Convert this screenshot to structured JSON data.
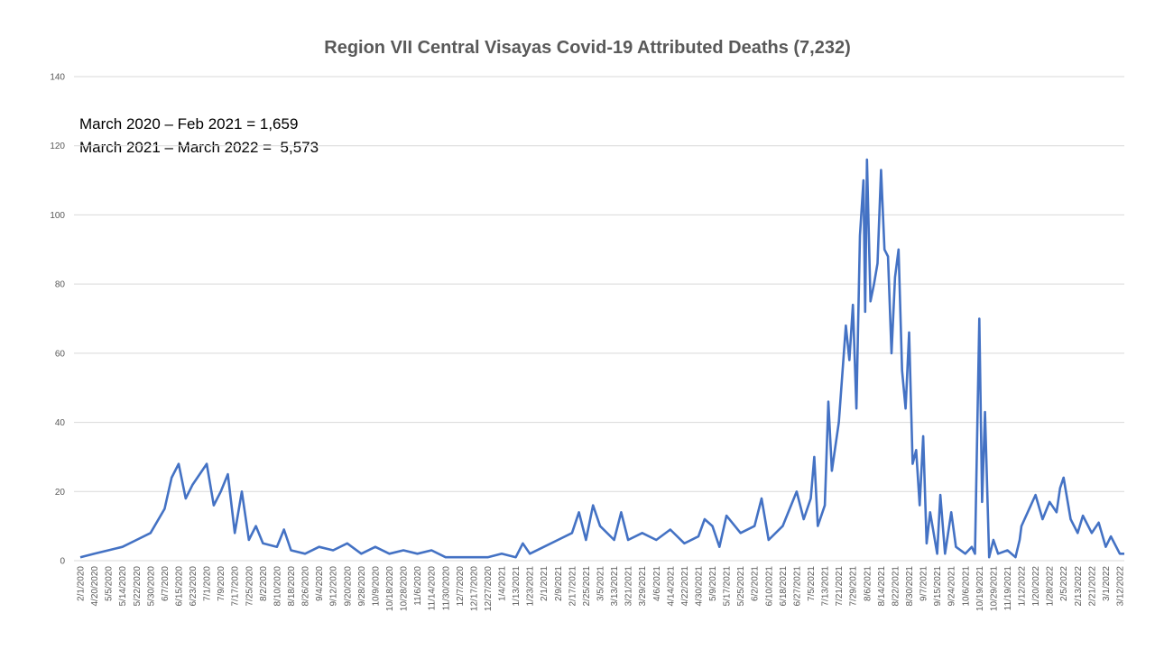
{
  "chart_data": {
    "type": "line",
    "title": "Region VII Central Visayas Covid-19 Attributed Deaths (7,232)",
    "annotations": [
      "March 2020 – Feb 2021 = 1,659",
      "March 2021 – March 2022 =  5,573"
    ],
    "xlabel": "",
    "ylabel": "",
    "ylim": [
      0,
      140
    ],
    "yticks": [
      0,
      20,
      40,
      60,
      80,
      100,
      120,
      140
    ],
    "x_tick_labels": [
      "2/1/2020",
      "4/20/2020",
      "5/5/2020",
      "5/14/2020",
      "5/22/2020",
      "5/30/2020",
      "6/7/2020",
      "6/15/2020",
      "6/23/2020",
      "7/1/2020",
      "7/9/2020",
      "7/17/2020",
      "7/25/2020",
      "8/2/2020",
      "8/10/2020",
      "8/18/2020",
      "8/26/2020",
      "9/4/2020",
      "9/12/2020",
      "9/20/2020",
      "9/28/2020",
      "10/9/2020",
      "10/18/2020",
      "10/28/2020",
      "11/6/2020",
      "11/14/2020",
      "11/30/2020",
      "12/7/2020",
      "12/17/2020",
      "12/27/2020",
      "1/4/2021",
      "1/13/2021",
      "1/23/2021",
      "2/1/2021",
      "2/9/2021",
      "2/17/2021",
      "2/25/2021",
      "3/5/2021",
      "3/13/2021",
      "3/21/2021",
      "3/29/2021",
      "4/6/2021",
      "4/14/2021",
      "4/22/2021",
      "4/30/2021",
      "5/9/2021",
      "5/17/2021",
      "5/25/2021",
      "6/2/2021",
      "6/10/2021",
      "6/18/2021",
      "6/27/2021",
      "7/5/2021",
      "7/13/2021",
      "7/21/2021",
      "7/29/2021",
      "8/6/2021",
      "8/14/2021",
      "8/22/2021",
      "8/30/2021",
      "9/7/2021",
      "9/15/2021",
      "9/24/2021",
      "10/6/2021",
      "10/19/2021",
      "10/29/2021",
      "11/19/2021",
      "1/12/2022",
      "1/20/2022",
      "1/28/2022",
      "2/5/2022",
      "2/13/2022",
      "2/21/2022",
      "3/1/2022",
      "3/12/2022"
    ],
    "grid": "horizontal",
    "legend": "none",
    "line_color": "#4472c4",
    "series": [
      {
        "points": [
          [
            "2/1/2020",
            1
          ],
          [
            "4/20/2020",
            2
          ],
          [
            "5/5/2020",
            3
          ],
          [
            "5/14/2020",
            4
          ],
          [
            "5/22/2020",
            6
          ],
          [
            "5/30/2020",
            8
          ],
          [
            "6/7/2020",
            15
          ],
          [
            "6/11/2020",
            24
          ],
          [
            "6/15/2020",
            28
          ],
          [
            "6/19/2020",
            18
          ],
          [
            "6/23/2020",
            22
          ],
          [
            "6/27/2020",
            25
          ],
          [
            "7/1/2020",
            28
          ],
          [
            "7/5/2020",
            16
          ],
          [
            "7/9/2020",
            20
          ],
          [
            "7/13/2020",
            25
          ],
          [
            "7/17/2020",
            8
          ],
          [
            "7/21/2020",
            20
          ],
          [
            "7/25/2020",
            6
          ],
          [
            "7/29/2020",
            10
          ],
          [
            "8/2/2020",
            5
          ],
          [
            "8/10/2020",
            4
          ],
          [
            "8/14/2020",
            9
          ],
          [
            "8/18/2020",
            3
          ],
          [
            "8/26/2020",
            2
          ],
          [
            "9/4/2020",
            4
          ],
          [
            "9/12/2020",
            3
          ],
          [
            "9/20/2020",
            5
          ],
          [
            "9/28/2020",
            2
          ],
          [
            "10/9/2020",
            4
          ],
          [
            "10/18/2020",
            2
          ],
          [
            "10/28/2020",
            3
          ],
          [
            "11/6/2020",
            2
          ],
          [
            "11/14/2020",
            3
          ],
          [
            "11/30/2020",
            1
          ],
          [
            "12/7/2020",
            1
          ],
          [
            "12/17/2020",
            1
          ],
          [
            "12/27/2020",
            1
          ],
          [
            "1/4/2021",
            2
          ],
          [
            "1/13/2021",
            1
          ],
          [
            "1/18/2021",
            5
          ],
          [
            "1/23/2021",
            2
          ],
          [
            "2/1/2021",
            4
          ],
          [
            "2/9/2021",
            6
          ],
          [
            "2/17/2021",
            8
          ],
          [
            "2/21/2021",
            14
          ],
          [
            "2/25/2021",
            6
          ],
          [
            "3/1/2021",
            16
          ],
          [
            "3/5/2021",
            10
          ],
          [
            "3/13/2021",
            6
          ],
          [
            "3/17/2021",
            14
          ],
          [
            "3/21/2021",
            6
          ],
          [
            "3/29/2021",
            8
          ],
          [
            "4/6/2021",
            6
          ],
          [
            "4/14/2021",
            9
          ],
          [
            "4/22/2021",
            5
          ],
          [
            "4/30/2021",
            7
          ],
          [
            "5/4/2021",
            12
          ],
          [
            "5/9/2021",
            10
          ],
          [
            "5/13/2021",
            4
          ],
          [
            "5/17/2021",
            13
          ],
          [
            "5/25/2021",
            8
          ],
          [
            "6/2/2021",
            10
          ],
          [
            "6/6/2021",
            18
          ],
          [
            "6/10/2021",
            6
          ],
          [
            "6/18/2021",
            10
          ],
          [
            "6/27/2021",
            20
          ],
          [
            "7/1/2021",
            12
          ],
          [
            "7/5/2021",
            18
          ],
          [
            "7/7/2021",
            30
          ],
          [
            "7/9/2021",
            10
          ],
          [
            "7/13/2021",
            16
          ],
          [
            "7/15/2021",
            46
          ],
          [
            "7/17/2021",
            26
          ],
          [
            "7/21/2021",
            40
          ],
          [
            "7/25/2021",
            68
          ],
          [
            "7/27/2021",
            58
          ],
          [
            "7/29/2021",
            74
          ],
          [
            "7/31/2021",
            44
          ],
          [
            "8/2/2021",
            94
          ],
          [
            "8/4/2021",
            110
          ],
          [
            "8/5/2021",
            72
          ],
          [
            "8/6/2021",
            116
          ],
          [
            "8/8/2021",
            75
          ],
          [
            "8/10/2021",
            80
          ],
          [
            "8/12/2021",
            86
          ],
          [
            "8/14/2021",
            113
          ],
          [
            "8/16/2021",
            90
          ],
          [
            "8/18/2021",
            88
          ],
          [
            "8/20/2021",
            60
          ],
          [
            "8/22/2021",
            82
          ],
          [
            "8/24/2021",
            90
          ],
          [
            "8/26/2021",
            55
          ],
          [
            "8/28/2021",
            44
          ],
          [
            "8/30/2021",
            66
          ],
          [
            "9/1/2021",
            28
          ],
          [
            "9/3/2021",
            32
          ],
          [
            "9/5/2021",
            16
          ],
          [
            "9/7/2021",
            36
          ],
          [
            "9/9/2021",
            5
          ],
          [
            "9/11/2021",
            14
          ],
          [
            "9/15/2021",
            2
          ],
          [
            "9/17/2021",
            19
          ],
          [
            "9/20/2021",
            2
          ],
          [
            "9/24/2021",
            14
          ],
          [
            "9/28/2021",
            4
          ],
          [
            "10/6/2021",
            2
          ],
          [
            "10/12/2021",
            4
          ],
          [
            "10/15/2021",
            2
          ],
          [
            "10/19/2021",
            70
          ],
          [
            "10/21/2021",
            17
          ],
          [
            "10/23/2021",
            43
          ],
          [
            "10/26/2021",
            1
          ],
          [
            "10/29/2021",
            6
          ],
          [
            "11/5/2021",
            2
          ],
          [
            "11/19/2021",
            3
          ],
          [
            "12/20/2021",
            1
          ],
          [
            "1/5/2022",
            6
          ],
          [
            "1/12/2022",
            10
          ],
          [
            "1/20/2022",
            19
          ],
          [
            "1/24/2022",
            12
          ],
          [
            "1/28/2022",
            17
          ],
          [
            "2/1/2022",
            14
          ],
          [
            "2/3/2022",
            21
          ],
          [
            "2/5/2022",
            24
          ],
          [
            "2/9/2022",
            12
          ],
          [
            "2/13/2022",
            8
          ],
          [
            "2/16/2022",
            13
          ],
          [
            "2/21/2022",
            8
          ],
          [
            "2/25/2022",
            11
          ],
          [
            "3/1/2022",
            4
          ],
          [
            "3/5/2022",
            7
          ],
          [
            "3/12/2022",
            2
          ],
          [
            "3/20/2022",
            2
          ]
        ]
      }
    ]
  }
}
